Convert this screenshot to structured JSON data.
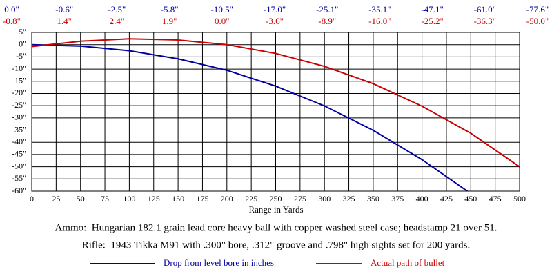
{
  "chart_data": {
    "type": "line",
    "x": [
      0,
      50,
      100,
      150,
      200,
      250,
      300,
      350,
      400,
      450,
      500
    ],
    "xlim": [
      0,
      500
    ],
    "xticks": [
      0,
      25,
      50,
      75,
      100,
      125,
      150,
      175,
      200,
      225,
      250,
      275,
      300,
      325,
      350,
      375,
      400,
      425,
      450,
      475,
      500
    ],
    "ylim": [
      -60,
      5
    ],
    "yticks": [
      {
        "value": 5,
        "label": "5\""
      },
      {
        "value": 0,
        "label": "0\""
      },
      {
        "value": -5,
        "label": "-5\""
      },
      {
        "value": -10,
        "label": "-10\""
      },
      {
        "value": -15,
        "label": "-15\""
      },
      {
        "value": -20,
        "label": "-20\""
      },
      {
        "value": -25,
        "label": "-25\""
      },
      {
        "value": -30,
        "label": "-30\""
      },
      {
        "value": -35,
        "label": "-35\""
      },
      {
        "value": -40,
        "label": "-40\""
      },
      {
        "value": -45,
        "label": "-45\""
      },
      {
        "value": -50,
        "label": "-50\""
      },
      {
        "value": -55,
        "label": "-55\""
      },
      {
        "value": -60,
        "label": "-60\""
      }
    ],
    "xlabel": "Range in Yards",
    "grid": true,
    "series": [
      {
        "name": "Drop from level bore in inches",
        "color": "#0000a0",
        "values": [
          0.0,
          -0.6,
          -2.5,
          -5.8,
          -10.5,
          -17.0,
          -25.1,
          -35.1,
          -47.1,
          -61.0,
          -77.6
        ],
        "value_labels": [
          "0.0\"",
          "-0.6\"",
          "-2.5\"",
          "-5.8\"",
          "-10.5\"",
          "-17.0\"",
          "-25.1\"",
          "-35.1\"",
          "-47.1\"",
          "-61.0\"",
          "-77.6\""
        ]
      },
      {
        "name": "Actual path of bullet",
        "color": "#cc0000",
        "values": [
          -0.8,
          1.4,
          2.4,
          1.9,
          0.0,
          -3.6,
          -8.9,
          -16.0,
          -25.2,
          -36.3,
          -50.0
        ],
        "value_labels": [
          "-0.8\"",
          "1.4\"",
          "2.4\"",
          "1.9\"",
          "0.0\"",
          "-3.6\"",
          "-8.9\"",
          "-16.0\"",
          "-25.2\"",
          "-36.3\"",
          "-50.0\""
        ]
      }
    ],
    "annotations": [
      "Ammo:  Hungarian 182.1 grain lead core heavy ball with copper washed steel case; headstamp 21 over 51.",
      "Rifle:  1943 Tikka M91 with .300\" bore, .312\" groove and .798\" high sights set for 200 yards."
    ]
  }
}
